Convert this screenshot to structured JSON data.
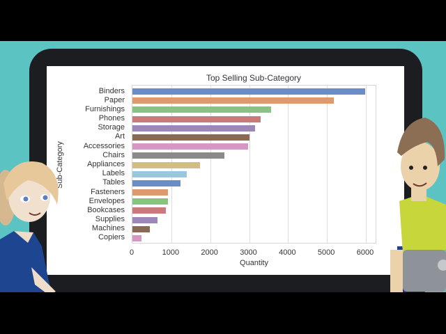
{
  "scene": {
    "background_color": "#5cc3c3",
    "frame_color": "#1c1d21",
    "characters": [
      "girl-character",
      "boy-character"
    ]
  },
  "chart_data": {
    "type": "bar",
    "orientation": "horizontal",
    "title": "Top Selling Sub-Category",
    "xlabel": "Quantity",
    "ylabel": "Sub-Category",
    "xlim": [
      0,
      6300
    ],
    "xticks": [
      "0",
      "1000",
      "2000",
      "3000",
      "4000",
      "5000",
      "6000"
    ],
    "grid": true,
    "categories": [
      "Binders",
      "Paper",
      "Furnishings",
      "Phones",
      "Storage",
      "Art",
      "Accessories",
      "Chairs",
      "Appliances",
      "Labels",
      "Tables",
      "Fasteners",
      "Envelopes",
      "Bookcases",
      "Supplies",
      "Machines",
      "Copiers"
    ],
    "values": [
      5974,
      5178,
      3563,
      3289,
      3158,
      3000,
      2976,
      2356,
      1729,
      1400,
      1241,
      914,
      906,
      868,
      647,
      440,
      234
    ],
    "colors": [
      "#6a8cc7",
      "#dd9a6e",
      "#8ac282",
      "#c97b7b",
      "#9c87b9",
      "#8a6a52",
      "#d598c4",
      "#8a8a8a",
      "#d2be84",
      "#9bc7dd",
      "#6a8cc7",
      "#dd9a6e",
      "#8ac282",
      "#c97b7b",
      "#9c87b9",
      "#8a6a52",
      "#d598c4"
    ]
  }
}
